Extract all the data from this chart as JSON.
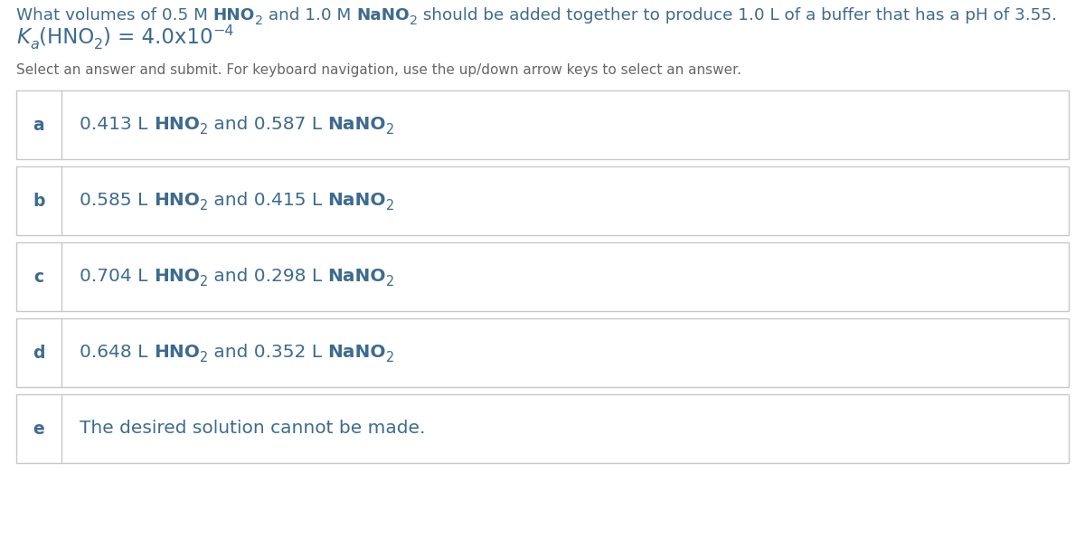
{
  "bg_color": "#ffffff",
  "text_color": "#3d6b8f",
  "border_color": "#c8c8c8",
  "letter_color": "#3d6b8f",
  "instruction_color": "#666666",
  "title_color": "#3d6b8f",
  "options": [
    {
      "letter": "a",
      "parts": [
        {
          "t": "0.413 L ",
          "bold": false,
          "sub": false
        },
        {
          "t": "HNO",
          "bold": true,
          "sub": false
        },
        {
          "t": "2",
          "bold": false,
          "sub": true
        },
        {
          "t": " and 0.587 L ",
          "bold": false,
          "sub": false
        },
        {
          "t": "NaNO",
          "bold": true,
          "sub": false
        },
        {
          "t": "2",
          "bold": false,
          "sub": true
        }
      ]
    },
    {
      "letter": "b",
      "parts": [
        {
          "t": "0.585 L ",
          "bold": false,
          "sub": false
        },
        {
          "t": "HNO",
          "bold": true,
          "sub": false
        },
        {
          "t": "2",
          "bold": false,
          "sub": true
        },
        {
          "t": " and 0.415 L ",
          "bold": false,
          "sub": false
        },
        {
          "t": "NaNO",
          "bold": true,
          "sub": false
        },
        {
          "t": "2",
          "bold": false,
          "sub": true
        }
      ]
    },
    {
      "letter": "c",
      "parts": [
        {
          "t": "0.704 L ",
          "bold": false,
          "sub": false
        },
        {
          "t": "HNO",
          "bold": true,
          "sub": false
        },
        {
          "t": "2",
          "bold": false,
          "sub": true
        },
        {
          "t": " and 0.298 L ",
          "bold": false,
          "sub": false
        },
        {
          "t": "NaNO",
          "bold": true,
          "sub": false
        },
        {
          "t": "2",
          "bold": false,
          "sub": true
        }
      ]
    },
    {
      "letter": "d",
      "parts": [
        {
          "t": "0.648 L ",
          "bold": false,
          "sub": false
        },
        {
          "t": "HNO",
          "bold": true,
          "sub": false
        },
        {
          "t": "2",
          "bold": false,
          "sub": true
        },
        {
          "t": " and 0.352 L ",
          "bold": false,
          "sub": false
        },
        {
          "t": "NaNO",
          "bold": true,
          "sub": false
        },
        {
          "t": "2",
          "bold": false,
          "sub": true
        }
      ]
    },
    {
      "letter": "e",
      "parts": [
        {
          "t": "The desired solution cannot be made.",
          "bold": false,
          "sub": false
        }
      ]
    }
  ]
}
